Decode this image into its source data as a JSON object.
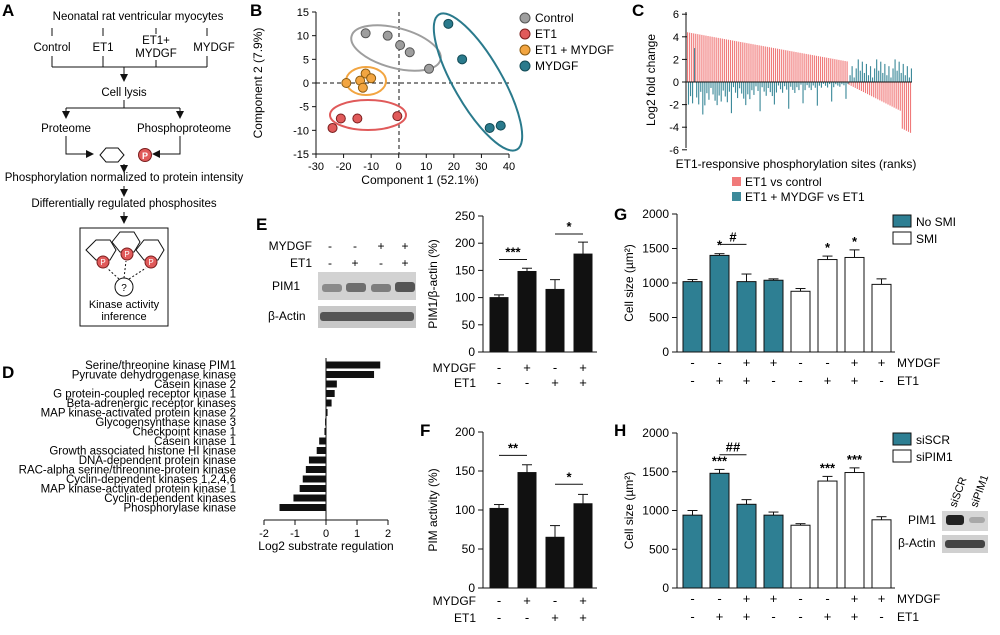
{
  "panels": {
    "a": "A",
    "b": "B",
    "c": "C",
    "d": "D",
    "e": "E",
    "f": "F",
    "g": "G",
    "h": "H"
  },
  "colors": {
    "control": "#9e9e9e",
    "et1": "#e05a5a",
    "et1_mydgf": "#f2a541",
    "mydgf": "#2a7a8c",
    "bar_red": "#f07a7a",
    "bar_teal": "#3d8a9a",
    "teal_bar": "#2e7f93"
  },
  "panel_a": {
    "title": "Neonatal rat ventricular myocytes",
    "conditions": [
      "Control",
      "ET1",
      "ET1+",
      "MYDGF",
      "MYDGF"
    ],
    "lysis": "Cell lysis",
    "proteome": "Proteome",
    "phosphoproteome": "Phosphoproteome",
    "p_symbol": "P",
    "normalized": "Phosphorylation normalized to protein intensity",
    "diff": "Differentially regulated phosphosites",
    "question": "?",
    "kinase_line1": "Kinase activity",
    "kinase_line2": "inference"
  },
  "chart_data": [
    {
      "id": "B",
      "type": "scatter",
      "xlabel": "Component 1 (52.1%)",
      "ylabel": "Component 2 (7.9%)",
      "xlim": [
        -30,
        40
      ],
      "ylim": [
        -15,
        15
      ],
      "xticks": [
        "-30",
        "-20",
        "-10",
        "0",
        "10",
        "20",
        "30",
        "40"
      ],
      "yticks": [
        "15",
        "10",
        "5",
        "0",
        "-5",
        "-10",
        "-15"
      ],
      "legend": [
        "Control",
        "ET1",
        "ET1 + MYDGF",
        "MYDGF"
      ],
      "series": [
        {
          "name": "Control",
          "points": [
            [
              -12,
              10.5
            ],
            [
              -4,
              10
            ],
            [
              0.5,
              8
            ],
            [
              4,
              6.5
            ],
            [
              11,
              3
            ]
          ]
        },
        {
          "name": "ET1",
          "points": [
            [
              -24,
              -9.5
            ],
            [
              -21,
              -7.5
            ],
            [
              -15,
              -7.5
            ],
            [
              -0.5,
              -7
            ]
          ]
        },
        {
          "name": "ET1 + MYDGF",
          "points": [
            [
              -19,
              0
            ],
            [
              -12,
              2
            ],
            [
              -14,
              0.5
            ],
            [
              -13,
              -1
            ],
            [
              -10,
              1
            ]
          ]
        },
        {
          "name": "MYDGF",
          "points": [
            [
              18,
              12.5
            ],
            [
              23,
              5
            ],
            [
              33,
              -9.5
            ],
            [
              37,
              -9
            ]
          ]
        }
      ]
    },
    {
      "id": "C",
      "type": "bar",
      "xlabel": "ET1-responsive phosphorylation sites (ranks)",
      "ylabel": "Log2 fold change",
      "ylim": [
        -6,
        6
      ],
      "yticks": [
        "6",
        "4",
        "2",
        "0",
        "-2",
        "-4",
        "-6"
      ],
      "legend": [
        "ET1 vs control",
        "ET1 + MYDGF vs ET1"
      ],
      "n_sites": 110
    },
    {
      "id": "D",
      "type": "bar",
      "orientation": "horizontal",
      "xlabel": "Log2 substrate regulation",
      "xlim": [
        -2,
        2
      ],
      "xticks": [
        "-2",
        "-1",
        "0",
        "1",
        "2"
      ],
      "categories": [
        "Serine/threonine kinase PIM1",
        "Pyruvate dehydrogenase kinase",
        "Casein kinase 2",
        "G protein-coupled receptor kinase 1",
        "Beta-adrenergic receptor kinases",
        "MAP kinase-activated protein kinase 2",
        "Glycogensynthase kinase 3",
        "Checkpoint kinase 1",
        "Casein kinase 1",
        "Growth associated histone HI kinase",
        "DNA-dependent protein kinase",
        "RAC-alpha serine/threonine-protein kinase",
        "Cyclin-dependent kinases 1,2,4,6",
        "MAP kinase-activated protein kinase 1",
        "Cyclin-dependent kinases",
        "Phosphorylase kinase"
      ],
      "values": [
        1.75,
        1.55,
        0.35,
        0.28,
        0.18,
        0.05,
        -0.03,
        -0.05,
        -0.22,
        -0.3,
        -0.55,
        -0.65,
        -0.75,
        -0.85,
        -1.05,
        -1.5
      ]
    },
    {
      "id": "E",
      "type": "bar",
      "ylabel": "PIM1/β-actin (%)",
      "ylim": [
        0,
        250
      ],
      "yticks": [
        "250",
        "200",
        "150",
        "100",
        "50",
        "0"
      ],
      "values": [
        100,
        148,
        115,
        180
      ],
      "errors": [
        5,
        6,
        18,
        22
      ],
      "row1_label": "MYDGF",
      "row1": [
        "-",
        "+",
        "-",
        "+"
      ],
      "row2_label": "ET1",
      "row2": [
        "-",
        "-",
        "+",
        "+"
      ],
      "sig": [
        "***",
        "*"
      ]
    },
    {
      "id": "F",
      "type": "bar",
      "ylabel": "PIM activity (%)",
      "ylim": [
        0,
        200
      ],
      "yticks": [
        "200",
        "150",
        "100",
        "50",
        "0"
      ],
      "values": [
        102,
        148,
        65,
        108
      ],
      "errors": [
        5,
        10,
        15,
        12
      ],
      "row1_label": "MYDGF",
      "row1": [
        "-",
        "+",
        "-",
        "+"
      ],
      "row2_label": "ET1",
      "row2": [
        "-",
        "-",
        "+",
        "+"
      ],
      "sig": [
        "**",
        "*"
      ]
    },
    {
      "id": "G",
      "type": "bar",
      "ylabel": "Cell size (µm²)",
      "ylim": [
        0,
        2000
      ],
      "yticks": [
        "2000",
        "1500",
        "1000",
        "500",
        "0"
      ],
      "legend": [
        "No SMI",
        "SMI"
      ],
      "values": [
        1020,
        1400,
        1020,
        1040,
        880,
        1340,
        1370,
        980
      ],
      "errors": [
        30,
        25,
        110,
        20,
        40,
        50,
        110,
        80
      ],
      "fills": [
        "teal",
        "teal",
        "teal",
        "teal",
        "white",
        "white",
        "white",
        "white"
      ],
      "row1_label": "MYDGF",
      "row1": [
        "-",
        "-",
        "+",
        "+",
        "-",
        "-",
        "+",
        "+"
      ],
      "row2_label": "ET1",
      "row2": [
        "-",
        "+",
        "+",
        "-",
        "-",
        "+",
        "+",
        "-"
      ],
      "stars": [
        "",
        "*",
        "",
        "",
        "",
        "*",
        "*",
        ""
      ],
      "hash": "#"
    },
    {
      "id": "H",
      "type": "bar",
      "ylabel": "Cell size (µm²)",
      "ylim": [
        0,
        2000
      ],
      "yticks": [
        "2000",
        "1500",
        "1000",
        "500",
        "0"
      ],
      "legend": [
        "siSCR",
        "siPIM1"
      ],
      "values": [
        940,
        1480,
        1080,
        940,
        810,
        1380,
        1490,
        880
      ],
      "errors": [
        60,
        50,
        60,
        40,
        20,
        60,
        60,
        40
      ],
      "fills": [
        "teal",
        "teal",
        "teal",
        "teal",
        "white",
        "white",
        "white",
        "white"
      ],
      "row1_label": "MYDGF",
      "row1": [
        "-",
        "-",
        "+",
        "+",
        "-",
        "-",
        "+",
        "+"
      ],
      "row2_label": "ET1",
      "row2": [
        "-",
        "+",
        "+",
        "-",
        "-",
        "+",
        "+",
        "-"
      ],
      "stars": [
        "",
        "***",
        "",
        "",
        "",
        "***",
        "***",
        ""
      ],
      "hash": "##"
    }
  ],
  "blot_e": {
    "row1_label": "MYDGF",
    "row2_label": "ET1",
    "row1": [
      "-",
      "-",
      "+",
      "+"
    ],
    "row2": [
      "-",
      "+",
      "-",
      "+"
    ],
    "band1": "PIM1",
    "band2": "β-Actin"
  },
  "blot_h": {
    "col1": "siSCR",
    "col2": "siPIM1",
    "band1": "PIM1",
    "band2": "β-Actin"
  }
}
